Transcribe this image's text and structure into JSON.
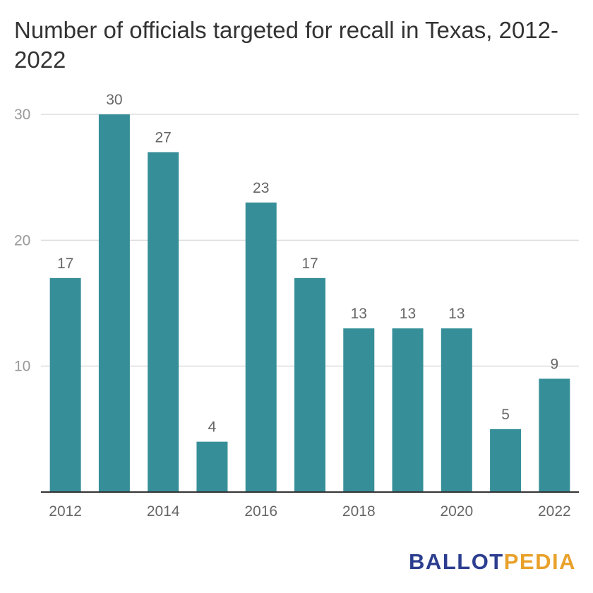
{
  "title": "Number of officials targeted for recall in Texas, 2012-2022",
  "logo": {
    "part1": "BALLOT",
    "part2": "PEDIA"
  },
  "colors": {
    "bar": "#368F98",
    "grid": "#dddddd",
    "axis": "#333333",
    "tick": "#999999",
    "label": "#666666"
  },
  "chart_data": {
    "type": "bar",
    "categories": [
      "2012",
      "2013",
      "2014",
      "2015",
      "2016",
      "2017",
      "2018",
      "2019",
      "2020",
      "2021",
      "2022"
    ],
    "values": [
      17,
      30,
      27,
      4,
      23,
      17,
      13,
      13,
      13,
      5,
      9
    ],
    "x_tick_labels": [
      "2012",
      "2014",
      "2016",
      "2018",
      "2020",
      "2022"
    ],
    "y_ticks": [
      10,
      20,
      30
    ],
    "ylim": [
      0,
      30
    ],
    "grid": true,
    "data_labels": true
  }
}
